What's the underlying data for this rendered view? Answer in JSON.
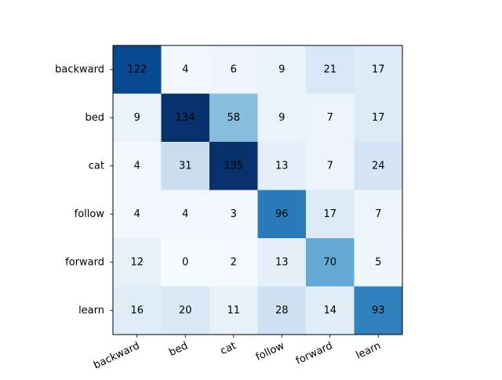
{
  "chart_data": {
    "type": "heatmap",
    "title": "",
    "xlabel": "",
    "ylabel": "",
    "colormap": "Blues",
    "x_categories": [
      "backward",
      "bed",
      "cat",
      "follow",
      "forward",
      "learn"
    ],
    "y_categories": [
      "backward",
      "bed",
      "cat",
      "follow",
      "forward",
      "learn"
    ],
    "values": [
      [
        122,
        4,
        6,
        9,
        21,
        17
      ],
      [
        9,
        134,
        58,
        9,
        7,
        17
      ],
      [
        4,
        31,
        135,
        13,
        7,
        24
      ],
      [
        4,
        4,
        3,
        96,
        17,
        7
      ],
      [
        12,
        0,
        2,
        13,
        70,
        5
      ],
      [
        16,
        20,
        11,
        28,
        14,
        93
      ]
    ],
    "value_range": [
      0,
      135
    ],
    "x_tick_rotation": 25,
    "grid": false,
    "legend": "none"
  }
}
